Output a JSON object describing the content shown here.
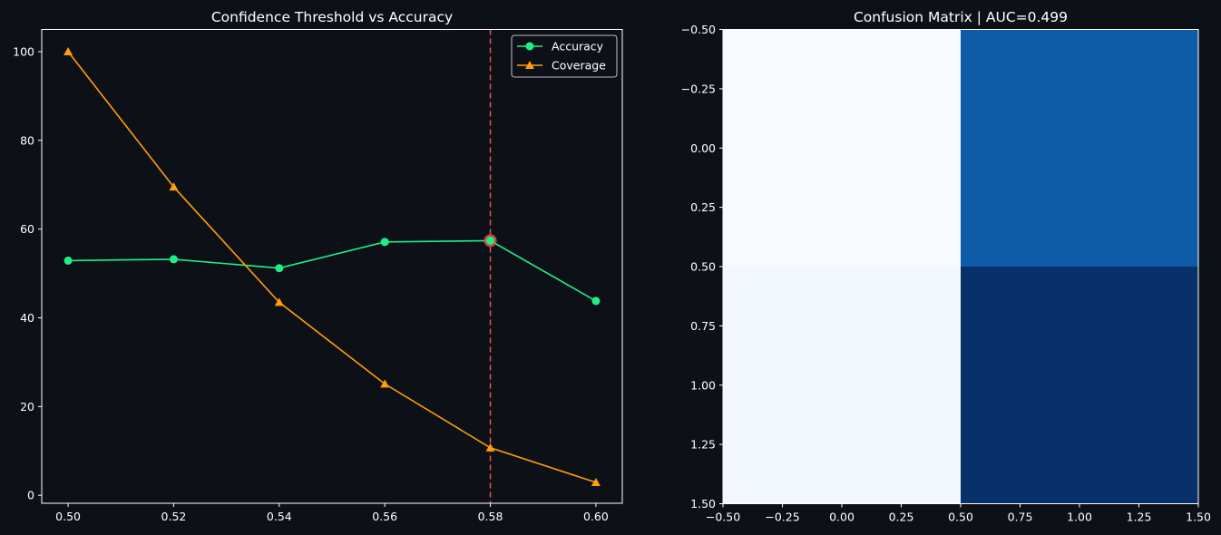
{
  "chart_data": [
    {
      "type": "line",
      "title": "Confidence Threshold vs Accuracy",
      "xlabel": "",
      "ylabel": "",
      "x": [
        0.5,
        0.52,
        0.54,
        0.56,
        0.58,
        0.6
      ],
      "xticks": [
        "0.50",
        "0.52",
        "0.54",
        "0.56",
        "0.58",
        "0.60"
      ],
      "xlim": [
        0.495,
        0.605
      ],
      "yticks": [
        "0",
        "20",
        "40",
        "60",
        "80",
        "100"
      ],
      "ylim": [
        -1.8,
        105
      ],
      "grid": false,
      "legend": "top-right",
      "series": [
        {
          "name": "Accuracy",
          "color": "#1ef086",
          "marker": "circle",
          "values": [
            52.9,
            53.2,
            51.2,
            57.1,
            57.4,
            43.8
          ]
        },
        {
          "name": "Coverage",
          "color": "#ff9d0a",
          "marker": "triangle",
          "values": [
            100,
            69.5,
            43.5,
            25.1,
            10.7,
            2.9
          ]
        }
      ],
      "vline": {
        "x": 0.58,
        "color": "#ef4f4f",
        "style": "dashed"
      },
      "highlight": {
        "x": 0.58,
        "y": 57.4,
        "color": "#ef4f4f"
      }
    },
    {
      "type": "heatmap",
      "title": "Confusion Matrix | AUC=0.499",
      "xlabel": "",
      "ylabel": "",
      "colormap": "Blues",
      "cells": [
        [
          "#f7fbff",
          "#0e5ca8"
        ],
        [
          "#f2f7fd",
          "#08306b"
        ]
      ],
      "xlim": [
        -0.5,
        1.5
      ],
      "ylim": [
        -0.5,
        1.5
      ],
      "xticks": [
        "−0.50",
        "−0.25",
        "0.00",
        "0.25",
        "0.50",
        "0.75",
        "1.00",
        "1.25",
        "1.50"
      ],
      "yticks": [
        "−0.50",
        "−0.25",
        "0.00",
        "0.25",
        "0.50",
        "0.75",
        "1.00",
        "1.25",
        "1.50"
      ]
    }
  ]
}
